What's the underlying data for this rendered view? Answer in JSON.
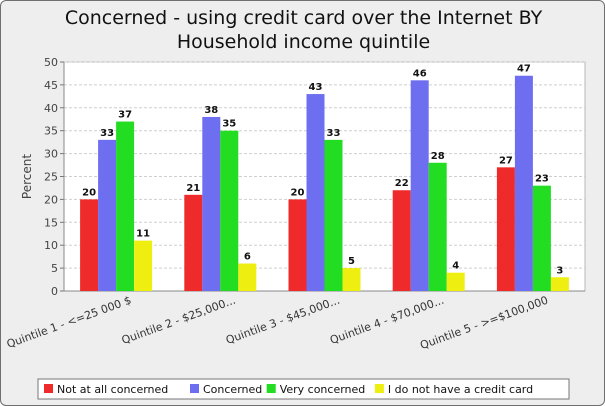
{
  "chart_data": {
    "type": "bar",
    "title_line1": "Concerned - using credit card over the Internet BY",
    "title_line2": "Household income quintile",
    "xlabel": "",
    "ylabel": "Percent",
    "ylim": [
      0,
      50
    ],
    "yticks": [
      0,
      5,
      10,
      15,
      20,
      25,
      30,
      35,
      40,
      45,
      50
    ],
    "grid": true,
    "legend_position": "bottom",
    "categories": [
      "Quintile 1 - <=25 000 $",
      "Quintile 2 - $25,000...",
      "Quintile 3 - $45,000...",
      "Quintile 4 - $70,000...",
      "Quintile 5 - >=$100,000"
    ],
    "series": [
      {
        "name": "Not at all concerned",
        "color": "#ee2a2a",
        "values": [
          20,
          21,
          20,
          22,
          27
        ]
      },
      {
        "name": "Concerned",
        "color": "#6e6ef0",
        "values": [
          33,
          38,
          43,
          46,
          47
        ]
      },
      {
        "name": "Very concerned",
        "color": "#22dd22",
        "values": [
          37,
          35,
          33,
          28,
          23
        ]
      },
      {
        "name": "I do not have a credit card",
        "color": "#eeee11",
        "values": [
          11,
          6,
          5,
          4,
          3
        ]
      }
    ]
  }
}
